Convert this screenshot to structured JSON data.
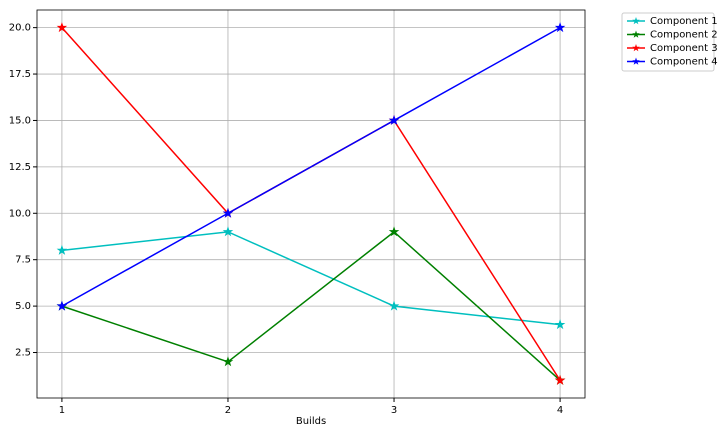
{
  "chart_data": {
    "type": "line",
    "xlabel": "Builds",
    "x": [
      1,
      2,
      3,
      4
    ],
    "series": [
      {
        "name": "Component 1",
        "color": "#00bfbf",
        "values": [
          8,
          9,
          5,
          4
        ]
      },
      {
        "name": "Component 2",
        "color": "#008000",
        "values": [
          5,
          2,
          9,
          1
        ]
      },
      {
        "name": "Component 3",
        "color": "#ff0000",
        "values": [
          20,
          10,
          15,
          1
        ]
      },
      {
        "name": "Component 4",
        "color": "#0000ff",
        "values": [
          5,
          10,
          15,
          20
        ]
      }
    ],
    "xlim": [
      0.85,
      4.15
    ],
    "ylim": [
      0.05,
      20.95
    ],
    "xticks": [
      1,
      2,
      3,
      4
    ],
    "yticks": [
      2.5,
      {
        "value": 5,
        "label": "5.0"
      },
      7.5,
      {
        "value": 10,
        "label": "10.0"
      },
      12.5,
      {
        "value": 15,
        "label": "15.0"
      },
      17.5,
      {
        "value": 20,
        "label": "20.0"
      }
    ],
    "grid": true,
    "marker": "star",
    "legend": "outside-upper-right"
  }
}
